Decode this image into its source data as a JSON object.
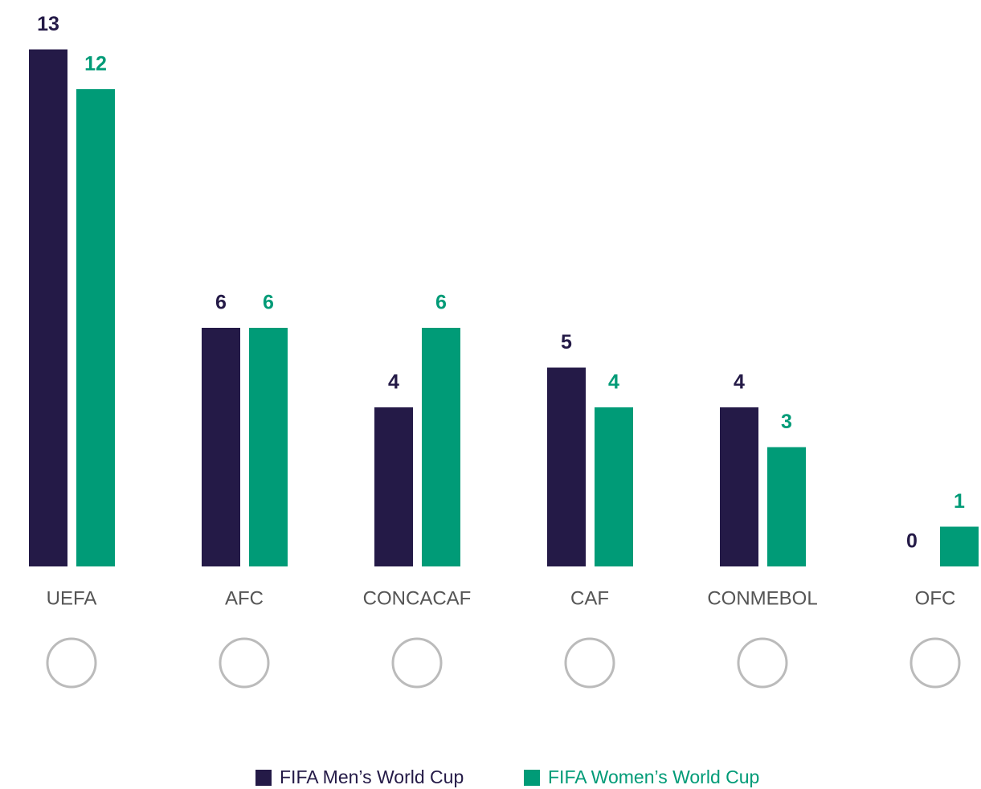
{
  "chart_data": {
    "type": "bar",
    "categories": [
      "UEFA",
      "AFC",
      "CONCACAF",
      "CAF",
      "CONMEBOL",
      "OFC"
    ],
    "series": [
      {
        "name": "FIFA Men’s World Cup",
        "color": "#241a47",
        "values": [
          13,
          6,
          4,
          5,
          4,
          0
        ]
      },
      {
        "name": "FIFA Women’s World Cup",
        "color": "#009b77",
        "values": [
          12,
          6,
          6,
          4,
          3,
          1
        ]
      }
    ]
  }
}
